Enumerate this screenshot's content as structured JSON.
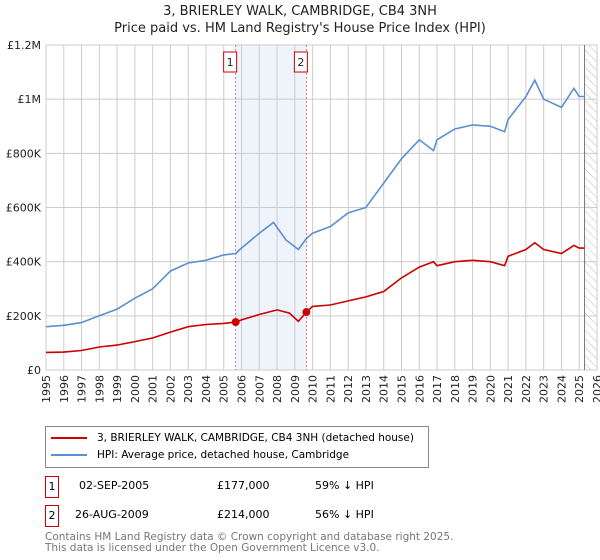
{
  "chart_data": {
    "type": "line",
    "title": "3, BRIERLEY WALK, CAMBRIDGE, CB4 3NH",
    "subtitle": "Price paid vs. HM Land Registry's House Price Index (HPI)",
    "xlim": [
      1995,
      2026
    ],
    "ylim": [
      0,
      1200000
    ],
    "yticks": [
      {
        "v": 0,
        "label": "£0"
      },
      {
        "v": 200000,
        "label": "£200K"
      },
      {
        "v": 400000,
        "label": "£400K"
      },
      {
        "v": 600000,
        "label": "£600K"
      },
      {
        "v": 800000,
        "label": "£800K"
      },
      {
        "v": 1000000,
        "label": "£1M"
      },
      {
        "v": 1200000,
        "label": "£1.2M"
      }
    ],
    "xticks": [
      "1995",
      "1996",
      "1997",
      "1998",
      "1999",
      "2000",
      "2001",
      "2002",
      "2003",
      "2004",
      "2005",
      "2006",
      "2007",
      "2008",
      "2009",
      "2010",
      "2011",
      "2012",
      "2013",
      "2014",
      "2015",
      "2016",
      "2017",
      "2018",
      "2019",
      "2020",
      "2021",
      "2022",
      "2023",
      "2024",
      "2025",
      "2026"
    ],
    "grid": true,
    "shaded_range": [
      2005.67,
      2009.65
    ],
    "data_end": 2025.3,
    "series": [
      {
        "name": "3, BRIERLEY WALK, CAMBRIDGE, CB4 3NH (detached house)",
        "color": "#cc0000",
        "x": [
          1995,
          1996,
          1997,
          1998,
          1999,
          2000,
          2001,
          2002,
          2003,
          2004,
          2005,
          2005.67,
          2006,
          2007,
          2008,
          2008.7,
          2009.2,
          2009.65,
          2010,
          2011,
          2012,
          2013,
          2014,
          2015,
          2016,
          2016.8,
          2017,
          2018,
          2019,
          2020,
          2020.8,
          2021,
          2022,
          2022.5,
          2023,
          2024,
          2024.7,
          2025,
          2025.3
        ],
        "y": [
          65000,
          66000,
          72000,
          85000,
          92000,
          105000,
          118000,
          140000,
          160000,
          168000,
          172000,
          177000,
          185000,
          205000,
          222000,
          210000,
          180000,
          214000,
          235000,
          240000,
          255000,
          270000,
          290000,
          340000,
          380000,
          400000,
          385000,
          400000,
          405000,
          400000,
          385000,
          420000,
          445000,
          470000,
          445000,
          430000,
          460000,
          450000,
          450000
        ]
      },
      {
        "name": "HPI: Average price, detached house, Cambridge",
        "color": "#5b8fd0",
        "x": [
          1995,
          1996,
          1997,
          1998,
          1999,
          2000,
          2001,
          2002,
          2003,
          2004,
          2005,
          2005.67,
          2006,
          2007,
          2007.8,
          2008.5,
          2009.2,
          2009.65,
          2010,
          2011,
          2012,
          2013,
          2014,
          2015,
          2016,
          2016.8,
          2017,
          2018,
          2019,
          2020,
          2020.8,
          2021,
          2022,
          2022.5,
          2023,
          2024,
          2024.7,
          2025,
          2025.3
        ],
        "y": [
          160000,
          165000,
          175000,
          200000,
          225000,
          265000,
          300000,
          365000,
          395000,
          405000,
          425000,
          430000,
          450000,
          505000,
          545000,
          480000,
          445000,
          485000,
          505000,
          530000,
          580000,
          600000,
          690000,
          780000,
          850000,
          810000,
          850000,
          890000,
          905000,
          900000,
          880000,
          925000,
          1010000,
          1070000,
          1000000,
          970000,
          1040000,
          1010000,
          1010000
        ]
      }
    ],
    "sales": [
      {
        "num": "1",
        "date": "02-SEP-2005",
        "x": 2005.67,
        "price": "£177,000",
        "value": 177000,
        "hpi": "59% ↓ HPI"
      },
      {
        "num": "2",
        "date": "26-AUG-2009",
        "x": 2009.65,
        "price": "£214,000",
        "value": 214000,
        "hpi": "56% ↓ HPI"
      }
    ]
  },
  "footer": {
    "line1": "Contains HM Land Registry data © Crown copyright and database right 2025.",
    "line2": "This data is licensed under the Open Government Licence v3.0."
  }
}
